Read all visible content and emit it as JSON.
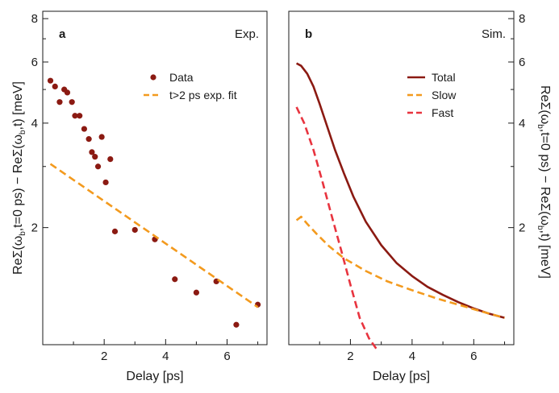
{
  "colors": {
    "data": "#8b1a12",
    "slow": "#f39a1e",
    "fast": "#e8343f",
    "total": "#8b1a12"
  },
  "chart_data": [
    {
      "type": "scatter",
      "panel_label": "a",
      "corner_label": "Exp.",
      "xlabel": "Delay [ps]",
      "ylabel": "ReΣ(ω_b,t=0 ps) − ReΣ(ω_b,t) [meV]",
      "ylabel_parts": {
        "pre": "ReΣ(ω",
        "sub1": "b",
        "mid": ",t=0 ps) − ReΣ(ω",
        "sub2": "b",
        "post": ",t)",
        "unit": "[meV]"
      },
      "xlim": [
        0,
        7.3
      ],
      "ylim": [
        0.92,
        8.4
      ],
      "yscale": "log",
      "x_ticks": [
        2,
        4,
        6
      ],
      "y_ticks": [
        2,
        4,
        6,
        8
      ],
      "legend_position": "top-right",
      "series": [
        {
          "name": "Data",
          "style": "markers",
          "x": [
            0.25,
            0.4,
            0.55,
            0.7,
            0.8,
            0.95,
            1.05,
            1.2,
            1.35,
            1.5,
            1.6,
            1.7,
            1.8,
            1.92,
            2.05,
            2.2,
            2.35,
            3.0,
            3.65,
            4.3,
            5.0,
            5.65,
            6.3,
            7.0
          ],
          "y": [
            5.3,
            5.1,
            4.6,
            5.0,
            4.9,
            4.6,
            4.2,
            4.2,
            3.85,
            3.6,
            3.3,
            3.2,
            3.0,
            3.65,
            2.7,
            3.15,
            1.95,
            1.97,
            1.85,
            1.42,
            1.3,
            1.4,
            1.05,
            1.2
          ]
        },
        {
          "name": "t>2 ps exp. fit",
          "style": "dashed",
          "x": [
            0.25,
            7.0
          ],
          "y": [
            3.05,
            1.18
          ]
        }
      ]
    },
    {
      "type": "line",
      "panel_label": "b",
      "corner_label": "Sim.",
      "xlabel": "Delay [ps]",
      "ylabel": "ReΣ(ω_b,t=0 ps) − ReΣ(ω_b,t) [meV]",
      "ylabel_parts": {
        "pre": "ReΣ(ω",
        "sub1": "b",
        "mid": ",t=0 ps) − ReΣ(ω",
        "sub2": "b",
        "post": ",t)",
        "unit": "[meV]"
      },
      "xlim": [
        0,
        7.3
      ],
      "ylim": [
        0.92,
        8.4
      ],
      "yscale": "log",
      "x_ticks": [
        2,
        4,
        6
      ],
      "y_ticks": [
        2,
        4,
        6,
        8
      ],
      "legend_position": "top-right",
      "series": [
        {
          "name": "Total",
          "style": "solid",
          "x": [
            0.25,
            0.4,
            0.6,
            0.8,
            1.0,
            1.25,
            1.5,
            1.8,
            2.1,
            2.5,
            3.0,
            3.5,
            4.0,
            4.5,
            5.0,
            5.5,
            6.0,
            6.5,
            7.0
          ],
          "y": [
            5.95,
            5.85,
            5.55,
            5.1,
            4.55,
            3.9,
            3.35,
            2.85,
            2.45,
            2.08,
            1.78,
            1.58,
            1.45,
            1.35,
            1.28,
            1.22,
            1.17,
            1.13,
            1.1
          ]
        },
        {
          "name": "Slow",
          "style": "dashed",
          "x": [
            0.25,
            0.4,
            0.6,
            0.9,
            1.3,
            1.8,
            2.5,
            3.2,
            4.0,
            4.8,
            5.5,
            6.2,
            7.0
          ],
          "y": [
            2.1,
            2.15,
            2.05,
            1.92,
            1.77,
            1.63,
            1.5,
            1.4,
            1.32,
            1.25,
            1.2,
            1.15,
            1.1
          ]
        },
        {
          "name": "Fast",
          "style": "dashed",
          "x": [
            0.25,
            0.5,
            0.8,
            1.1,
            1.4,
            1.7,
            2.0,
            2.3,
            2.6,
            2.9
          ],
          "y": [
            4.45,
            4.0,
            3.35,
            2.7,
            2.15,
            1.72,
            1.37,
            1.1,
            0.96,
            0.88
          ]
        }
      ]
    }
  ]
}
